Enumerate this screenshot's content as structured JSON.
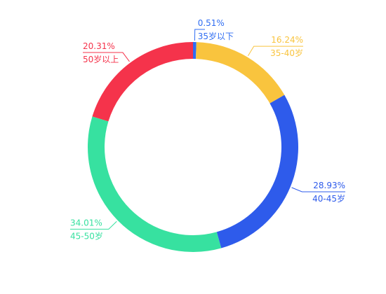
{
  "chart_data": {
    "type": "pie",
    "title": "",
    "legend": "none",
    "slices": [
      {
        "label": "35岁以下",
        "value": 0.51,
        "value_label": "0.51%",
        "color": "#2F6DF2"
      },
      {
        "label": "35-40岁",
        "value": 16.24,
        "value_label": "16.24%",
        "color": "#F9C43E"
      },
      {
        "label": "40-45岁",
        "value": 28.93,
        "value_label": "28.93%",
        "color": "#2E5BEB"
      },
      {
        "label": "45-50岁",
        "value": 34.01,
        "value_label": "34.01%",
        "color": "#37E1A0"
      },
      {
        "label": "50岁以上",
        "value": 20.31,
        "value_label": "20.31%",
        "color": "#F5334B"
      }
    ]
  }
}
